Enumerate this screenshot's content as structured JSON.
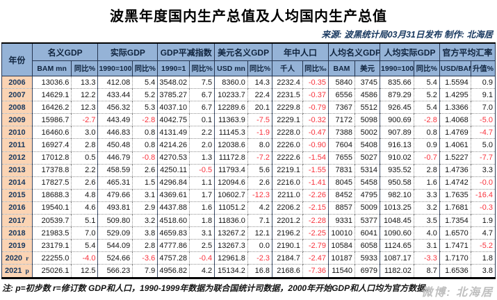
{
  "page": {
    "title": "波黑年度国内生产总值及人均国内生产总值",
    "source_line": "来源: 波黑统计局03月31日发布  制作: 北海居",
    "footnote": "注: p=初步数 r=修订数  GDP和人口，1990-1999年数据为联合国统计司数据，2000年开始GDP和人口均为官方数据。",
    "watermark": "微博: 北海居"
  },
  "colors": {
    "header_bg": "#95B3D7",
    "year_col_bg": "#FBD4B4",
    "negative_value": "#F8323C",
    "header_text": "#10243E",
    "source_text": "#17375E"
  },
  "chart_data": {
    "type": "table",
    "title": "波黑年度国内生产总值及人均国内生产总值",
    "year_header": "年份",
    "column_groups": [
      {
        "label": "名义GDP",
        "sub": [
          "BAM mn",
          "同比%"
        ]
      },
      {
        "label": "实际GDP",
        "sub": [
          "1990=100",
          "同比%"
        ]
      },
      {
        "label": "GDP平减指数",
        "sub": [
          "1990=1",
          "同比%"
        ]
      },
      {
        "label": "美元名义GDP",
        "sub": [
          "USD mn",
          "同比%"
        ]
      },
      {
        "label": "年中人口",
        "sub": [
          "千人",
          "同比‰"
        ]
      },
      {
        "label": "人均名义GDP",
        "sub": [
          "BAM",
          "美元"
        ]
      },
      {
        "label": "人均实际GDP",
        "sub": [
          "1990=100",
          "同比%"
        ]
      },
      {
        "label": "官方平均汇率",
        "sub": [
          "USD/BAM",
          "升值%"
        ]
      }
    ],
    "rows": [
      {
        "year": "2006",
        "suffix": "",
        "values": [
          "13036.6",
          "13.3",
          "412.08",
          "5.4",
          "3548.02",
          "7.5",
          "8360.0",
          "14.3",
          "2232.4",
          "-0.35",
          "5840",
          "3745",
          "835.66",
          "5.4",
          "1.5594",
          "0.9"
        ]
      },
      {
        "year": "2007",
        "suffix": "",
        "values": [
          "14629.1",
          "12.2",
          "433.44",
          "5.2",
          "3785.27",
          "6.7",
          "10233.7",
          "22.4",
          "2231.5",
          "-0.37",
          "6556",
          "4586",
          "879.29",
          "5.2",
          "1.4295",
          "9.1"
        ]
      },
      {
        "year": "2008",
        "suffix": "",
        "values": [
          "16426.2",
          "12.3",
          "456.32",
          "5.3",
          "4037.10",
          "6.7",
          "12289.6",
          "20.1",
          "2229.8",
          "-0.79",
          "7367",
          "5512",
          "926.45",
          "5.4",
          "1.3366",
          "7.0"
        ]
      },
      {
        "year": "2009",
        "suffix": "",
        "values": [
          "15986.7",
          "-2.7",
          "443.49",
          "-2.8",
          "4042.75",
          "0.1",
          "11363.9",
          "-7.5",
          "2229.1",
          "-0.32",
          "7172",
          "5098",
          "900.69",
          "-2.8",
          "1.4068",
          "-5.0"
        ]
      },
      {
        "year": "2010",
        "suffix": "",
        "values": [
          "16460.6",
          "3.0",
          "446.83",
          "0.8",
          "4131.49",
          "2.2",
          "11145.3",
          "-1.9",
          "2228.0",
          "-0.47",
          "7388",
          "5002",
          "907.89",
          "0.8",
          "1.4769",
          "-4.7"
        ]
      },
      {
        "year": "2011",
        "suffix": "",
        "values": [
          "16927.4",
          "2.8",
          "450.48",
          "0.8",
          "4214.26",
          "2.0",
          "12038.6",
          "8.0",
          "2226.0",
          "-0.90",
          "7604",
          "5408",
          "916.13",
          "0.9",
          "1.4061",
          "5.0"
        ]
      },
      {
        "year": "2012",
        "suffix": "",
        "values": [
          "17012.8",
          "0.5",
          "446.79",
          "-0.8",
          "4270.53",
          "1.3",
          "11172.8",
          "-7.2",
          "2222.6",
          "-1.54",
          "7655",
          "5027",
          "910.02",
          "-0.7",
          "1.5227",
          "-7.7"
        ]
      },
      {
        "year": "2013",
        "suffix": "",
        "values": [
          "17378.8",
          "2.2",
          "458.59",
          "2.6",
          "4250.11",
          "-0.5",
          "11793.4",
          "5.6",
          "2219.1",
          "-1.55",
          "7831",
          "5314",
          "935.52",
          "2.8",
          "1.4736",
          "3.3"
        ]
      },
      {
        "year": "2014",
        "suffix": "",
        "values": [
          "17827.5",
          "2.6",
          "465.31",
          "1.5",
          "4296.84",
          "1.1",
          "12094.6",
          "2.6",
          "2216.0",
          "-1.41",
          "8045",
          "5458",
          "950.58",
          "1.6",
          "1.4742",
          "-0.0"
        ]
      },
      {
        "year": "2015",
        "suffix": "",
        "values": [
          "18688.3",
          "4.8",
          "479.66",
          "3.1",
          "4369.61",
          "1.7",
          "10602.7",
          "-12.3",
          "2211.0",
          "-2.26",
          "8452",
          "4795",
          "982.10",
          "3.3",
          "1.7635",
          "-16.4"
        ]
      },
      {
        "year": "2016",
        "suffix": "",
        "values": [
          "19540.1",
          "4.6",
          "493.81",
          "2.9",
          "4437.88",
          "1.6",
          "11051.2",
          "4.2",
          "2206.2",
          "-2.15",
          "8857",
          "5009",
          "1013.25",
          "3.2",
          "1.7681",
          "-0.3"
        ]
      },
      {
        "year": "2017",
        "suffix": "",
        "values": [
          "20539.7",
          "5.1",
          "509.80",
          "3.2",
          "4518.60",
          "1.8",
          "11836.0",
          "7.1",
          "2201.2",
          "-2.28",
          "9331",
          "5377",
          "1048.45",
          "3.5",
          "1.7354",
          "1.9"
        ]
      },
      {
        "year": "2018",
        "suffix": "",
        "values": [
          "21983.5",
          "7.0",
          "529.09",
          "3.8",
          "4659.83",
          "3.1",
          "13267.2",
          "12.1",
          "2196.2",
          "-2.25",
          "10010",
          "6041",
          "1090.60",
          "4.0",
          "1.6570",
          "4.7"
        ]
      },
      {
        "year": "2019",
        "suffix": "",
        "values": [
          "23179.1",
          "5.4",
          "544.09",
          "2.8",
          "4777.86",
          "2.5",
          "13267.3",
          "0.0",
          "2190.1",
          "-2.79",
          "10584",
          "6058",
          "1124.65",
          "3.1",
          "1.7471",
          "-5.2"
        ]
      },
      {
        "year": "2020",
        "suffix": "r",
        "values": [
          "22255.0",
          "-4.0",
          "524.66",
          "-3.6",
          "4757.28",
          "-0.4",
          "12961.8",
          "-2.3",
          "2184.7",
          "-2.47",
          "10187",
          "5933",
          "1087.17",
          "-3.3",
          "1.7170",
          "1.8"
        ]
      },
      {
        "year": "2021",
        "suffix": "p",
        "values": [
          "25026.1",
          "12.5",
          "566.23",
          "7.9",
          "4956.82",
          "4.2",
          "15134.2",
          "16.8",
          "2168.6",
          "-7.36",
          "11540",
          "6979",
          "1182.02",
          "8.7",
          "1.6536",
          "3.8"
        ]
      }
    ]
  }
}
